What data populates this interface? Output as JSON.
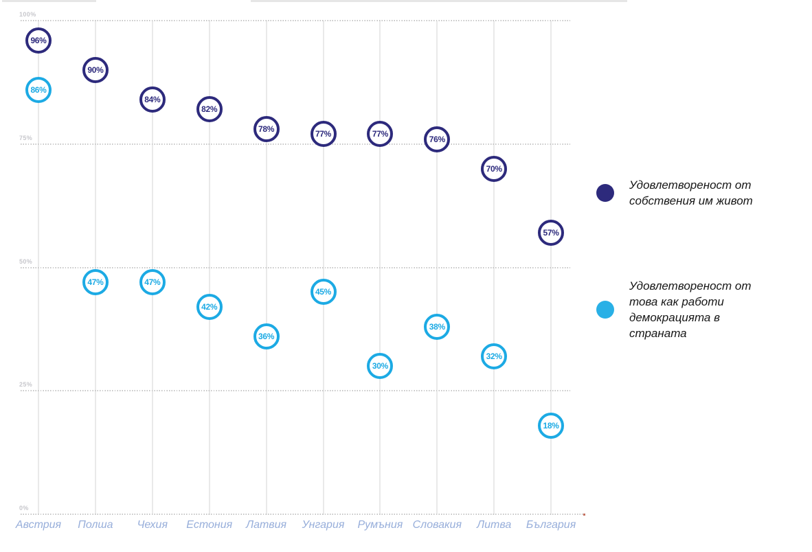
{
  "chart_data": {
    "type": "scatter",
    "title": "",
    "categories": [
      "Австрия",
      "Полша",
      "Чехия",
      "Естония",
      "Латвия",
      "Унгария",
      "Румъния",
      "Словакия",
      "Литва",
      "България"
    ],
    "series": [
      {
        "name": "Удовлетвореност от собствения им живот",
        "color": "#2d2a7c",
        "values": [
          96,
          90,
          84,
          82,
          78,
          77,
          77,
          76,
          70,
          57
        ]
      },
      {
        "name": "Удовлетвореност от това как работи демокрацията в страната",
        "color": "#1caae4",
        "values": [
          86,
          47,
          47,
          42,
          36,
          45,
          30,
          38,
          32,
          18
        ]
      }
    ],
    "y_axis": [
      {
        "label": "100%",
        "value": 100
      },
      {
        "label": "75%",
        "value": 75
      },
      {
        "label": "50%",
        "value": 50
      },
      {
        "label": "25%",
        "value": 25
      },
      {
        "label": "0%",
        "value": 0
      }
    ],
    "ylim": [
      0,
      100
    ],
    "xlabel": "",
    "ylabel": "",
    "grid": "horizontal dotted lines, vertical solid light-gray category lines",
    "legend_position": "right",
    "data_label_suffix": "%"
  },
  "legend": {
    "items": [
      {
        "label": "Удовлетвореност от собствения им живот",
        "color": "#2d2a7c"
      },
      {
        "label": "Удовлетвореност от това как работи демокрацията в страната",
        "color": "#29b0e6"
      }
    ]
  }
}
